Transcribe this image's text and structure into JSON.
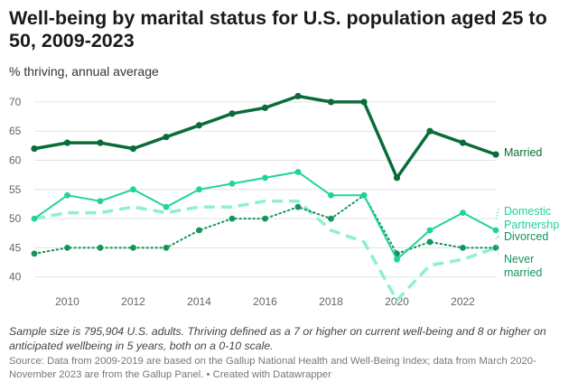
{
  "title": "Well-being by marital status for U.S. population aged 25 to 50, 2009-2023",
  "subtitle": "% thriving, annual average",
  "notes": "Sample size is 795,904 U.S. adults. Thriving defined as a 7 or higher on current well-being and 8 or higher on anticipated wellbeing in 5 years, both on a 0-10 scale.",
  "source": "Source: Data from 2009-2019 are based on the Gallup National Health and Well-Being Index; data from March 2020-November 2023 are from the Gallup Panel. • Created with Datawrapper",
  "chart_data": {
    "type": "line",
    "x": [
      2009,
      2010,
      2011,
      2012,
      2013,
      2014,
      2015,
      2016,
      2017,
      2018,
      2019,
      2020,
      2021,
      2022,
      2023
    ],
    "x_ticks": [
      2010,
      2012,
      2014,
      2016,
      2018,
      2020,
      2022
    ],
    "y_ticks": [
      40,
      45,
      50,
      55,
      60,
      65,
      70
    ],
    "xlim": [
      2009,
      2023
    ],
    "ylim": [
      35,
      72
    ],
    "grid": "horizontal",
    "series": [
      {
        "name": "Married",
        "label_lines": [
          "Married"
        ],
        "color": "#0b6b3a",
        "style": "solid",
        "width": 3.5,
        "values": [
          62,
          63,
          63,
          62,
          64,
          66,
          68,
          69,
          71,
          70,
          70,
          57,
          65,
          63,
          61
        ]
      },
      {
        "name": "Domestic Partnershp",
        "label_lines": [
          "Domestic",
          "Partnershp"
        ],
        "color": "#1fd39c",
        "style": "solid",
        "width": 2,
        "values": [
          50,
          54,
          53,
          55,
          52,
          55,
          56,
          57,
          58,
          54,
          54,
          43,
          48,
          51,
          48
        ]
      },
      {
        "name": "Divorced",
        "label_lines": [
          "Divorced"
        ],
        "color": "#13955a",
        "style": "dotted",
        "width": 2,
        "values": [
          44,
          45,
          45,
          45,
          45,
          48,
          50,
          50,
          52,
          50,
          54,
          44,
          46,
          45,
          45
        ]
      },
      {
        "name": "Never married",
        "label_lines": [
          "Never",
          "married"
        ],
        "color": "#8ef0cc",
        "style": "dashed",
        "width": 3.5,
        "values": [
          50,
          51,
          51,
          52,
          51,
          52,
          52,
          53,
          53,
          48,
          46,
          36,
          42,
          43,
          45
        ]
      }
    ]
  }
}
